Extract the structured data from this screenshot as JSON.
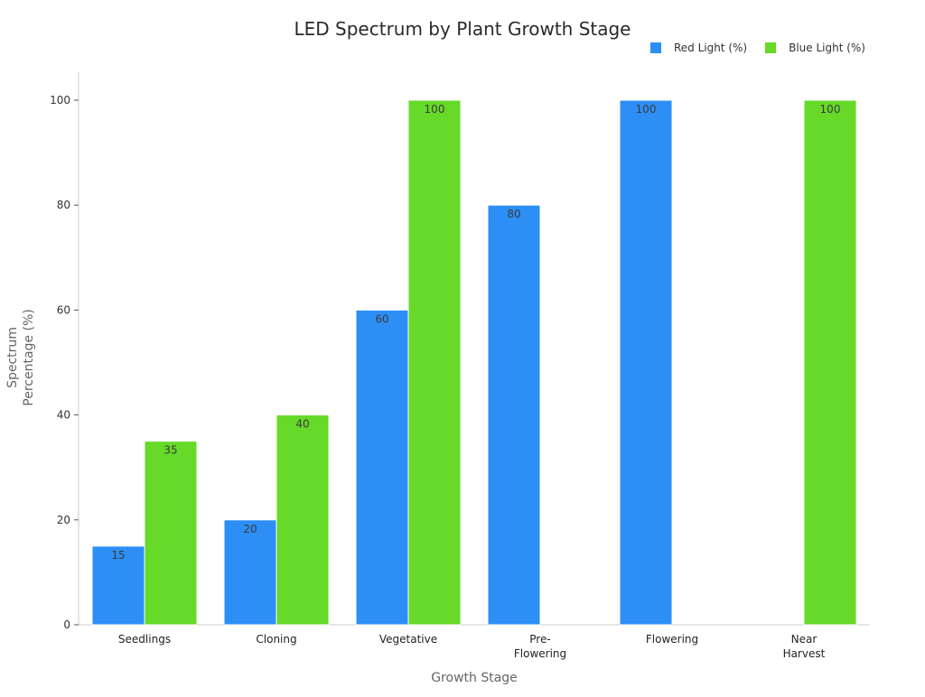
{
  "chart_data": {
    "type": "bar",
    "title": "LED Spectrum by Plant Growth Stage",
    "xlabel": "Growth Stage",
    "ylabel": [
      "Spectrum",
      "Percentage (%)"
    ],
    "categories": [
      [
        "Seedlings"
      ],
      [
        "Cloning"
      ],
      [
        "Vegetative"
      ],
      [
        "Pre-",
        "Flowering"
      ],
      [
        "Flowering"
      ],
      [
        "Near",
        "Harvest"
      ]
    ],
    "series": [
      {
        "name": "Red Light (%)",
        "color": "#2d8ff5",
        "values": [
          15,
          20,
          60,
          80,
          100,
          0
        ]
      },
      {
        "name": "Blue Light (%)",
        "color": "#66d929",
        "values": [
          35,
          40,
          100,
          0,
          0,
          100
        ]
      }
    ],
    "ylim": [
      0,
      100
    ],
    "yticks": [
      0,
      20,
      40,
      60,
      80,
      100
    ],
    "grid": false,
    "legend_position": "top-right"
  }
}
